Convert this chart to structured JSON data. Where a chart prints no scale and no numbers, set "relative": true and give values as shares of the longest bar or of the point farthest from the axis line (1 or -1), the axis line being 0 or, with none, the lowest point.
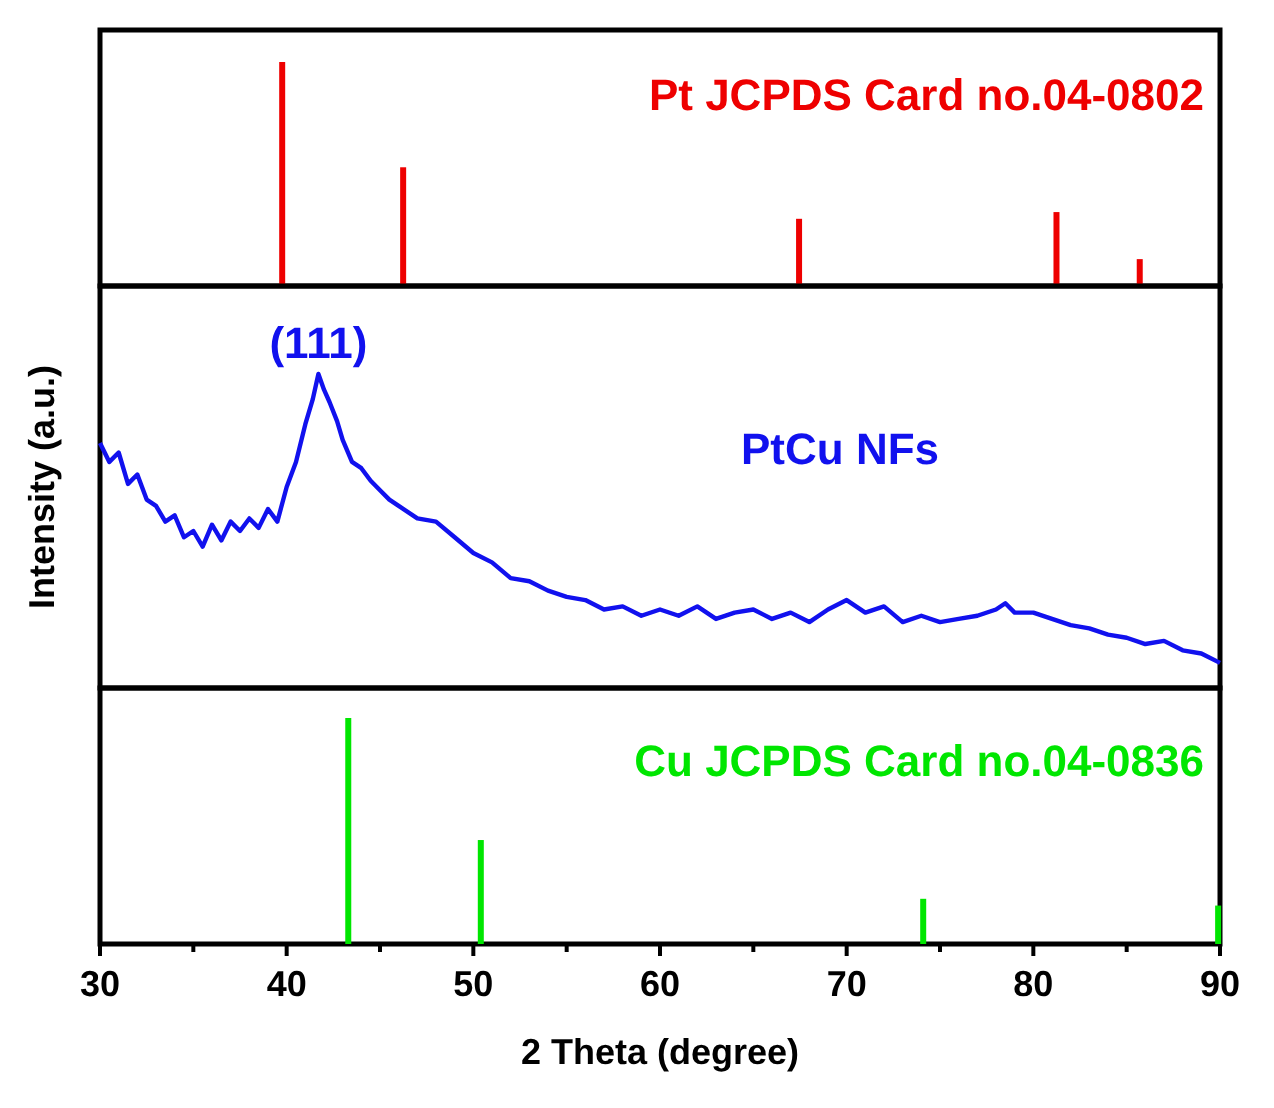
{
  "chart_data": [
    {
      "type": "bar",
      "relative": true,
      "xlim": [
        30,
        90
      ],
      "tick_labels": false,
      "xticks": [
        30,
        40,
        50,
        60,
        70,
        80,
        90
      ],
      "x": [
        39.76,
        46.24,
        67.45,
        81.24,
        85.7
      ],
      "series": [
        {
          "name": "Pt JCPDS Card no.04-0802",
          "color": "#ee0000",
          "values": [
            1,
            0.53,
            0.3,
            0.33,
            0.12
          ]
        }
      ]
    },
    {
      "type": "line",
      "relative": true,
      "xlim": [
        30,
        90
      ],
      "tick_labels": false,
      "xticks": [
        30,
        40,
        50,
        60,
        70,
        80,
        90
      ],
      "ylabel": "Intensity (a.u.)",
      "annotations": [
        {
          "text": "(111)",
          "x": 41.7,
          "y": 1
        }
      ],
      "x": [
        30,
        30.5,
        31,
        31.5,
        32,
        32.5,
        33,
        33.5,
        34,
        34.5,
        35,
        35.5,
        36,
        36.5,
        37,
        37.5,
        38,
        38.5,
        39,
        39.5,
        40,
        40.5,
        41,
        41.4,
        41.7,
        42,
        42.3,
        42.7,
        43,
        43.5,
        44,
        44.5,
        45,
        45.5,
        46,
        47,
        48,
        49,
        50,
        51,
        52,
        53,
        54,
        55,
        56,
        57,
        58,
        59,
        60,
        61,
        62,
        63,
        64,
        65,
        66,
        67,
        68,
        69,
        70,
        71,
        72,
        73,
        74,
        75,
        76,
        77,
        78,
        78.5,
        79,
        80,
        81,
        82,
        83,
        84,
        85,
        86,
        87,
        88,
        89,
        90
      ],
      "series": [
        {
          "name": "PtCu NFs",
          "color": "#1111ee",
          "values": [
            0.78,
            0.72,
            0.75,
            0.65,
            0.68,
            0.6,
            0.58,
            0.53,
            0.55,
            0.48,
            0.5,
            0.45,
            0.52,
            0.47,
            0.53,
            0.5,
            0.54,
            0.51,
            0.57,
            0.53,
            0.64,
            0.72,
            0.84,
            0.92,
            1,
            0.95,
            0.91,
            0.85,
            0.79,
            0.72,
            0.7,
            0.66,
            0.63,
            0.6,
            0.58,
            0.54,
            0.53,
            0.48,
            0.43,
            0.4,
            0.35,
            0.34,
            0.31,
            0.29,
            0.28,
            0.25,
            0.26,
            0.23,
            0.25,
            0.23,
            0.26,
            0.22,
            0.24,
            0.25,
            0.22,
            0.24,
            0.21,
            0.25,
            0.28,
            0.24,
            0.26,
            0.21,
            0.23,
            0.21,
            0.22,
            0.23,
            0.25,
            0.27,
            0.24,
            0.24,
            0.22,
            0.2,
            0.19,
            0.17,
            0.16,
            0.14,
            0.15,
            0.12,
            0.11,
            0.08
          ]
        }
      ]
    },
    {
      "type": "bar",
      "relative": true,
      "xlim": [
        30,
        90
      ],
      "xticks": [
        30,
        {
          "value": 35,
          "label": null
        },
        40,
        {
          "value": 45,
          "label": null
        },
        50,
        {
          "value": 55,
          "label": null
        },
        60,
        {
          "value": 65,
          "label": null
        },
        70,
        {
          "value": 75,
          "label": null
        },
        80,
        {
          "value": 85,
          "label": null
        },
        90
      ],
      "xlabel": "2 Theta (degree)",
      "x": [
        43.3,
        50.4,
        74.1,
        89.9
      ],
      "series": [
        {
          "name": "Cu JCPDS Card no.04-0836",
          "color": "#00e600",
          "values": [
            1,
            0.46,
            0.2,
            0.17
          ]
        }
      ]
    }
  ]
}
